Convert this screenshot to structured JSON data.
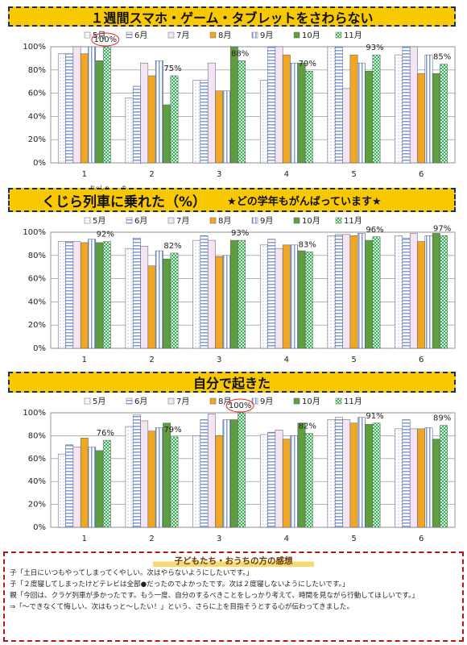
{
  "chart_data": [
    {
      "type": "bar",
      "title": "１週間スマホ・ゲーム・タブレットをさわらない",
      "categories": [
        "1",
        "2",
        "3",
        "4",
        "5",
        "6"
      ],
      "ylim": [
        0,
        100
      ],
      "yticks": [
        {
          "value": 0,
          "label": "0%"
        },
        {
          "value": 20,
          "label": "20%"
        },
        {
          "value": 40,
          "label": "40%"
        },
        {
          "value": 60,
          "label": "60%"
        },
        {
          "value": 80,
          "label": "80%"
        },
        {
          "value": 100,
          "label": "100%"
        }
      ],
      "grid": true,
      "series": [
        {
          "name": "5月",
          "color": "#c8d2ec",
          "pattern": "dots",
          "values": [
            94,
            56,
            71,
            71,
            100,
            93
          ]
        },
        {
          "name": "6月",
          "color": "#7f9cd8",
          "pattern": "hstripes",
          "values": [
            94,
            66,
            71,
            100,
            100,
            100
          ]
        },
        {
          "name": "7月",
          "color": "#f4e4f4",
          "pattern": "solid",
          "values": [
            100,
            86,
            86,
            100,
            64,
            100
          ]
        },
        {
          "name": "8月",
          "color": "#f0a824",
          "pattern": "solid",
          "values": [
            94,
            75,
            62,
            93,
            93,
            77
          ]
        },
        {
          "name": "9月",
          "color": "#7f9cd8",
          "pattern": "vstripes",
          "values": [
            100,
            88,
            62,
            86,
            86,
            93
          ]
        },
        {
          "name": "10月",
          "color": "#5e9e3e",
          "pattern": "solid",
          "values": [
            88,
            50,
            100,
            86,
            79,
            77
          ]
        },
        {
          "name": "11月",
          "color": "#3fae5c",
          "pattern": "checks",
          "values": [
            100,
            75,
            88,
            79,
            93,
            85
          ],
          "value_labels": [
            "100%",
            "75%",
            "88%",
            "79%",
            "93%",
            "85%"
          ]
        }
      ]
    },
    {
      "type": "bar",
      "title": "くじら列車に乗れた（%）",
      "furigana": [
        "れっしゃ",
        "の"
      ],
      "subtitle": "★どの学年もがんばっています★",
      "categories": [
        "1",
        "2",
        "3",
        "4",
        "5",
        "6"
      ],
      "ylim": [
        0,
        100
      ],
      "yticks": [
        {
          "value": 0,
          "label": "0%"
        },
        {
          "value": 20,
          "label": "20%"
        },
        {
          "value": 40,
          "label": "40%"
        },
        {
          "value": 60,
          "label": "60%"
        },
        {
          "value": 80,
          "label": "80%"
        },
        {
          "value": 100,
          "label": "100%"
        }
      ],
      "grid": true,
      "series": [
        {
          "name": "5月",
          "color": "#c8d2ec",
          "pattern": "dots",
          "values": [
            92,
            86,
            93,
            89,
            97,
            97
          ]
        },
        {
          "name": "6月",
          "color": "#7f9cd8",
          "pattern": "hstripes",
          "values": [
            92,
            95,
            97,
            94,
            98,
            95
          ]
        },
        {
          "name": "7月",
          "color": "#f4e4f4",
          "pattern": "solid",
          "values": [
            92,
            88,
            93,
            86,
            98,
            99
          ]
        },
        {
          "name": "8月",
          "color": "#f0a824",
          "pattern": "solid",
          "values": [
            91,
            71,
            79,
            89,
            97,
            92
          ]
        },
        {
          "name": "9月",
          "color": "#7f9cd8",
          "pattern": "vstripes",
          "values": [
            94,
            84,
            80,
            89,
            99,
            97
          ]
        },
        {
          "name": "10月",
          "color": "#5e9e3e",
          "pattern": "solid",
          "values": [
            91,
            77,
            93,
            84,
            93,
            99
          ]
        },
        {
          "name": "11月",
          "color": "#3fae5c",
          "pattern": "checks",
          "values": [
            92,
            82,
            93,
            83,
            96,
            97
          ],
          "value_labels": [
            "92%",
            "82%",
            "93%",
            "83%",
            "96%",
            "97%"
          ]
        }
      ]
    },
    {
      "type": "bar",
      "title": "自分で起きた",
      "categories": [
        "1",
        "2",
        "3",
        "4",
        "5",
        "6"
      ],
      "ylim": [
        0,
        100
      ],
      "yticks": [
        {
          "value": 0,
          "label": "0%"
        },
        {
          "value": 20,
          "label": "20%"
        },
        {
          "value": 40,
          "label": "40%"
        },
        {
          "value": 60,
          "label": "60%"
        },
        {
          "value": 80,
          "label": "80%"
        },
        {
          "value": 100,
          "label": "100%"
        }
      ],
      "grid": true,
      "series": [
        {
          "name": "5月",
          "color": "#c8d2ec",
          "pattern": "dots",
          "values": [
            64,
            88,
            80,
            81,
            94,
            86
          ]
        },
        {
          "name": "6月",
          "color": "#7f9cd8",
          "pattern": "hstripes",
          "values": [
            72,
            98,
            94,
            83,
            96,
            94
          ]
        },
        {
          "name": "7月",
          "color": "#f4e4f4",
          "pattern": "solid",
          "values": [
            70,
            93,
            99,
            85,
            94,
            86
          ]
        },
        {
          "name": "8月",
          "color": "#f0a824",
          "pattern": "solid",
          "values": [
            78,
            84,
            80,
            77,
            91,
            86
          ]
        },
        {
          "name": "9月",
          "color": "#7f9cd8",
          "pattern": "vstripes",
          "values": [
            70,
            87,
            94,
            80,
            96,
            87
          ]
        },
        {
          "name": "10月",
          "color": "#5e9e3e",
          "pattern": "solid",
          "values": [
            67,
            91,
            94,
            91,
            90,
            77
          ]
        },
        {
          "name": "11月",
          "color": "#3fae5c",
          "pattern": "checks",
          "values": [
            76,
            79,
            100,
            82,
            91,
            89
          ],
          "value_labels": [
            "76%",
            "79%",
            "100%",
            "82%",
            "91%",
            "89%"
          ]
        }
      ]
    }
  ],
  "comments": {
    "title": "子どもたち・おうちの方の感想",
    "lines": [
      "子「土日にいつもやってしまってくやしい。次はやらないようにしたいです。」",
      "子「２度寝してしまったけどテレビは全部●だったのでよかったです。次は２度寝しないようにしたいです。」",
      "親「今回は、クラゲ列車が多かったです。もう一度、自分のするべきことをしっかり考えて、時間を見ながら行動してほしいです。」",
      "⇒「～できなくて悔しい、次はもっと～したい！」という、さらに上を目指そうとする心が伝わってきました。"
    ]
  }
}
